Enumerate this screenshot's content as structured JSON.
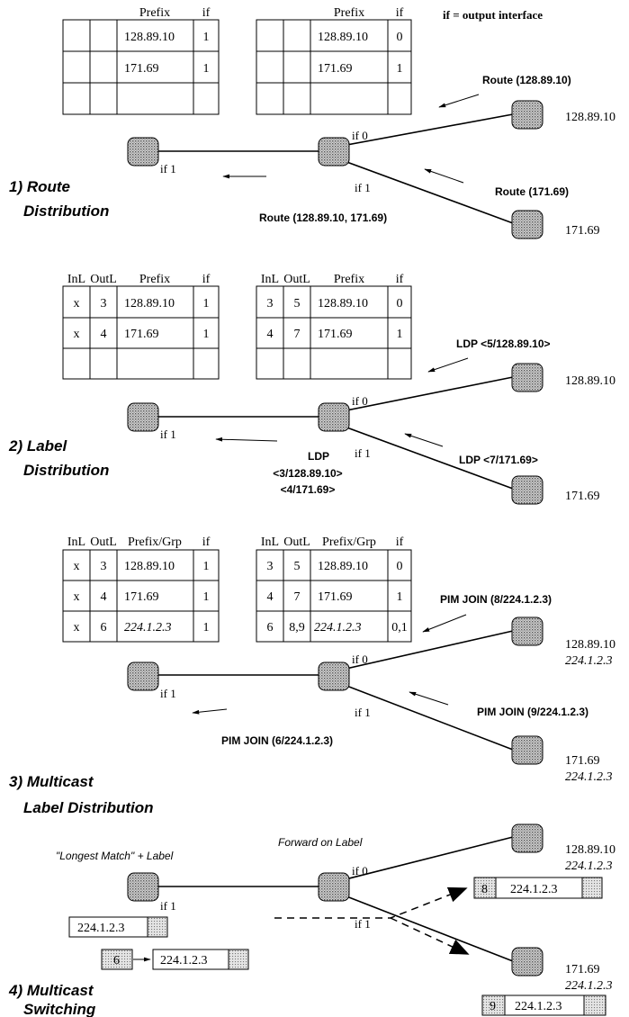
{
  "legend": "if = output interface",
  "iface": {
    "if0": "if 0",
    "if1": "if 1"
  },
  "dest": {
    "a": "128.89.10",
    "b": "171.69",
    "grp": "224.1.2.3"
  },
  "sections": [
    {
      "step": "1) Route",
      "step2": "Distribution",
      "left_headers": [
        "",
        "",
        "Prefix",
        "if"
      ],
      "left_rows": [
        [
          "",
          "",
          "128.89.10",
          "1"
        ],
        [
          "",
          "",
          "171.69",
          "1"
        ],
        [
          "",
          "",
          "",
          ""
        ]
      ],
      "right_headers": [
        "",
        "",
        "Prefix",
        "if"
      ],
      "right_rows": [
        [
          "",
          "",
          "128.89.10",
          "0"
        ],
        [
          "",
          "",
          "171.69",
          "1"
        ],
        [
          "",
          "",
          "",
          ""
        ]
      ],
      "msg_top": "Route (128.89.10)",
      "msg_bottom": "Route (171.69)",
      "msg_left": [
        "Route (128.89.10, 171.69)"
      ]
    },
    {
      "step": "2) Label",
      "step2": "Distribution",
      "left_headers": [
        "InL",
        "OutL",
        "Prefix",
        "if"
      ],
      "left_rows": [
        [
          "x",
          "3",
          "128.89.10",
          "1"
        ],
        [
          "x",
          "4",
          "171.69",
          "1"
        ],
        [
          "",
          "",
          "",
          ""
        ]
      ],
      "right_headers": [
        "InL",
        "OutL",
        "Prefix",
        "if"
      ],
      "right_rows": [
        [
          "3",
          "5",
          "128.89.10",
          "0"
        ],
        [
          "4",
          "7",
          "171.69",
          "1"
        ],
        [
          "",
          "",
          "",
          ""
        ]
      ],
      "msg_top": "LDP <5/128.89.10>",
      "msg_bottom": "LDP <7/171.69>",
      "msg_left": [
        "LDP",
        "<3/128.89.10>",
        "<4/171.69>"
      ]
    },
    {
      "step": "3) Multicast",
      "step2": "Label Distribution",
      "left_headers": [
        "InL",
        "OutL",
        "Prefix/Grp",
        "if"
      ],
      "left_rows": [
        [
          "x",
          "3",
          "128.89.10",
          "1"
        ],
        [
          "x",
          "4",
          "171.69",
          "1"
        ],
        [
          "x",
          "6",
          "224.1.2.3",
          "1"
        ]
      ],
      "right_headers": [
        "InL",
        "OutL",
        "Prefix/Grp",
        "if"
      ],
      "right_rows": [
        [
          "3",
          "5",
          "128.89.10",
          "0"
        ],
        [
          "4",
          "7",
          "171.69",
          "1"
        ],
        [
          "6",
          "8,9",
          "224.1.2.3",
          "0,1"
        ]
      ],
      "msg_top": "PIM JOIN (8/224.1.2.3)",
      "msg_bottom": "PIM JOIN (9/224.1.2.3)",
      "msg_left": [
        "PIM JOIN (6/224.1.2.3)"
      ]
    },
    {
      "step": "4) Multicast",
      "step2": "Switching",
      "longest_match": "\"Longest Match\" + Label",
      "forward_on_label": "Forward on Label",
      "pkt_plain": "224.1.2.3",
      "pkt_in_label": "6",
      "pkt_out_top_label": "8",
      "pkt_out_bottom_label": "9"
    }
  ]
}
